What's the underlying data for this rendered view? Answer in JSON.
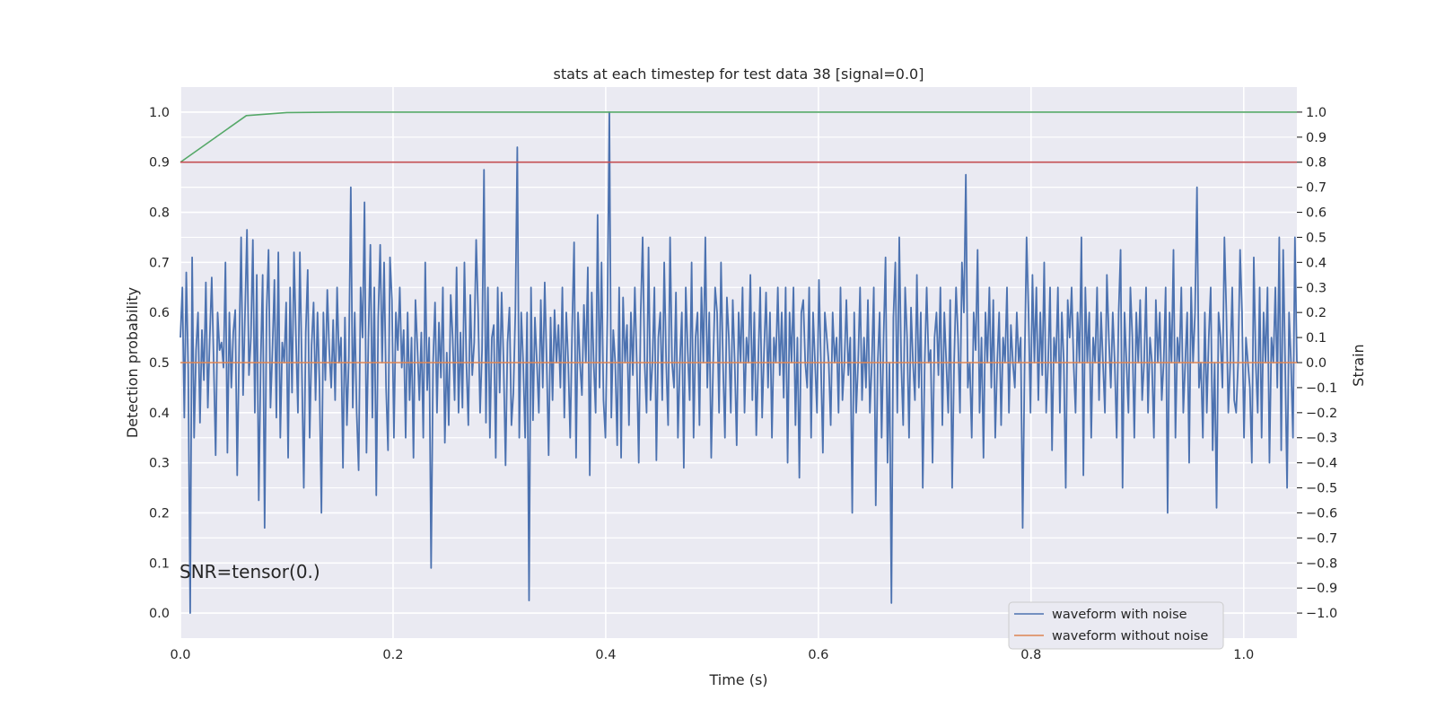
{
  "chart_data": {
    "type": "line",
    "title": "stats at each timestep for test data 38 [signal=0.0]",
    "xlabel": "Time (s)",
    "ylabel": "Detection probability",
    "ylabel_right": "Strain",
    "xlim": [
      0.0,
      1.05
    ],
    "ylim": [
      -0.05,
      1.05
    ],
    "ylim_right": [
      -1.1,
      1.1
    ],
    "x_ticks": [
      0.0,
      0.2,
      0.4,
      0.6,
      0.8,
      1.0
    ],
    "x_tick_labels": [
      "0.0",
      "0.2",
      "0.4",
      "0.6",
      "0.8",
      "1.0"
    ],
    "y_ticks": [
      0.0,
      0.1,
      0.2,
      0.3,
      0.4,
      0.5,
      0.6,
      0.7,
      0.8,
      0.9,
      1.0
    ],
    "y_tick_labels": [
      "0.0",
      "0.1",
      "0.2",
      "0.3",
      "0.4",
      "0.5",
      "0.6",
      "0.7",
      "0.8",
      "0.9",
      "1.0"
    ],
    "y_right_ticks": [
      -1.0,
      -0.9,
      -0.8,
      -0.7,
      -0.6,
      -0.5,
      -0.4,
      -0.3,
      -0.2,
      -0.1,
      0.0,
      0.1,
      0.2,
      0.3,
      0.4,
      0.5,
      0.6,
      0.7,
      0.8,
      0.9,
      1.0
    ],
    "y_right_tick_labels": [
      "−1.0",
      "−0.9",
      "−0.8",
      "−0.7",
      "−0.6",
      "−0.5",
      "−0.4",
      "−0.3",
      "−0.2",
      "−0.1",
      "0.0",
      "0.1",
      "0.2",
      "0.3",
      "0.4",
      "0.5",
      "0.6",
      "0.7",
      "0.8",
      "0.9",
      "1.0"
    ],
    "grid": true,
    "legend_position": "lower-right",
    "annotation": "SNR=tensor(0.)",
    "series": [
      {
        "name": "waveform with noise",
        "axis": "right",
        "color": "#4c72b0",
        "x_start": 0.0,
        "x_end": 1.05,
        "values": [
          0.1,
          0.3,
          -0.22,
          0.36,
          -0.03,
          -1.0,
          0.42,
          -0.3,
          0.05,
          0.2,
          -0.24,
          0.13,
          -0.07,
          0.32,
          -0.18,
          0.1,
          0.34,
          0.0,
          -0.37,
          0.2,
          0.05,
          0.08,
          -0.02,
          0.4,
          -0.36,
          0.2,
          -0.1,
          0.12,
          0.21,
          -0.45,
          0.06,
          0.5,
          -0.13,
          0.2,
          0.53,
          -0.05,
          0.1,
          0.49,
          -0.2,
          0.35,
          -0.55,
          0.0,
          0.35,
          -0.66,
          0.2,
          0.45,
          -0.18,
          0.05,
          0.33,
          -0.22,
          0.44,
          -0.3,
          0.08,
          0.0,
          0.24,
          -0.38,
          0.3,
          -0.12,
          0.44,
          0.1,
          -0.2,
          0.44,
          -0.02,
          -0.5,
          0.12,
          0.37,
          -0.3,
          0.07,
          0.24,
          -0.15,
          0.2,
          -0.08,
          -0.6,
          0.2,
          -0.07,
          0.29,
          0.05,
          -0.1,
          0.17,
          -0.15,
          0.3,
          0.0,
          0.1,
          -0.42,
          0.18,
          -0.25,
          0.02,
          0.7,
          -0.18,
          0.2,
          -0.2,
          -0.43,
          0.3,
          0.1,
          0.64,
          -0.36,
          0.1,
          0.47,
          -0.22,
          0.3,
          -0.53,
          0.18,
          0.47,
          0.0,
          0.4,
          -0.1,
          -0.35,
          0.42,
          0.25,
          -0.3,
          0.2,
          0.05,
          0.3,
          -0.02,
          0.13,
          -0.3,
          0.2,
          -0.15,
          0.1,
          -0.38,
          0.25,
          0.06,
          -0.15,
          0.12,
          -0.3,
          0.4,
          -0.11,
          0.1,
          -0.82,
          0.0,
          0.24,
          -0.2,
          0.16,
          -0.06,
          0.3,
          -0.32,
          0.04,
          -0.25,
          0.27,
          0.1,
          -0.15,
          0.38,
          -0.2,
          0.12,
          -0.18,
          0.4,
          0.0,
          -0.25,
          0.27,
          -0.05,
          0.08,
          0.49,
          0.2,
          -0.2,
          0.05,
          0.77,
          -0.24,
          0.3,
          -0.3,
          0.1,
          0.15,
          -0.38,
          0.3,
          -0.12,
          0.28,
          0.0,
          -0.41,
          0.08,
          0.22,
          -0.25,
          -0.12,
          0.2,
          0.86,
          -0.3,
          0.2,
          0.0,
          -0.3,
          0.2,
          -0.95,
          0.3,
          -0.23,
          0.18,
          0.0,
          -0.2,
          0.25,
          -0.1,
          0.32,
          0.0,
          -0.37,
          0.18,
          -0.15,
          0.21,
          0.0,
          0.15,
          -0.1,
          0.3,
          -0.22,
          0.2,
          0.0,
          -0.3,
          0.14,
          0.48,
          -0.38,
          0.2,
          0.0,
          -0.13,
          0.23,
          0.0,
          0.38,
          -0.45,
          0.28,
          0.0,
          -0.2,
          0.59,
          -0.1,
          0.4,
          -0.15,
          -0.3,
          0.2,
          1.0,
          -0.22,
          0.13,
          0.0,
          -0.33,
          0.3,
          -0.38,
          0.26,
          0.0,
          0.15,
          -0.25,
          0.2,
          -0.05,
          0.3,
          0.0,
          -0.4,
          0.2,
          0.5,
          0.0,
          -0.2,
          0.46,
          -0.15,
          0.0,
          0.3,
          -0.39,
          0.1,
          0.2,
          -0.15,
          0.4,
          0.0,
          -0.25,
          0.5,
          0.0,
          -0.1,
          0.28,
          -0.3,
          0.0,
          0.2,
          -0.42,
          0.3,
          0.05,
          -0.15,
          0.4,
          -0.3,
          0.1,
          0.2,
          -0.25,
          0.3,
          0.0,
          0.5,
          -0.1,
          0.2,
          -0.38,
          0.0,
          0.3,
          0.2,
          -0.2,
          0.4,
          0.0,
          -0.3,
          0.26,
          0.1,
          -0.2,
          0.25,
          0.0,
          -0.33,
          0.2,
          0.0,
          0.3,
          -0.2,
          0.1,
          0.0,
          0.35,
          -0.15,
          0.2,
          -0.29,
          0.0,
          0.3,
          -0.22,
          0.05,
          0.28,
          -0.1,
          0.2,
          -0.3,
          0.1,
          0.0,
          0.3,
          -0.05,
          0.2,
          -0.14,
          0.3,
          -0.4,
          0.2,
          0.0,
          0.3,
          -0.25,
          0.1,
          -0.46,
          0.2,
          0.25,
          0.0,
          -0.1,
          0.3,
          -0.3,
          0.2,
          0.0,
          -0.2,
          0.33,
          0.0,
          -0.36,
          0.2,
          0.1,
          0.0,
          -0.25,
          0.2,
          0.0,
          0.1,
          -0.2,
          0.3,
          -0.15,
          0.0,
          0.25,
          -0.05,
          0.1,
          -0.6,
          0.2,
          -0.2,
          0.0,
          0.3,
          -0.15,
          0.1,
          -0.1,
          0.25,
          -0.2,
          0.0,
          0.3,
          -0.57,
          0.0,
          0.2,
          -0.3,
          0.1,
          0.42,
          -0.4,
          0.0,
          -0.96,
          0.18,
          0.4,
          -0.2,
          0.5,
          0.0,
          -0.25,
          0.3,
          0.1,
          -0.3,
          0.22,
          0.0,
          -0.15,
          0.35,
          -0.1,
          0.2,
          -0.5,
          0.0,
          0.3,
          0.0,
          0.05,
          -0.4,
          0.1,
          0.2,
          -0.05,
          0.3,
          -0.25,
          0.2,
          0.0,
          -0.2,
          0.25,
          -0.5,
          0.0,
          0.3,
          0.1,
          -0.2,
          0.4,
          0.2,
          0.75,
          -0.1,
          0.0,
          -0.3,
          0.2,
          0.05,
          0.45,
          -0.2,
          0.1,
          -0.38,
          0.2,
          0.0,
          0.3,
          -0.1,
          0.25,
          -0.3,
          0.0,
          0.2,
          -0.25,
          0.1,
          0.0,
          0.3,
          -0.2,
          0.15,
          0.0,
          -0.1,
          0.2,
          0.0,
          0.1,
          -0.66,
          0.0,
          0.5,
          0.2,
          -0.2,
          0.35,
          0.0,
          0.3,
          -0.15,
          0.2,
          -0.05,
          0.4,
          -0.2,
          0.0,
          0.3,
          -0.35,
          0.1,
          0.0,
          0.3,
          -0.2,
          0.2,
          0.0,
          -0.5,
          0.25,
          0.1,
          0.3,
          0.0,
          -0.2,
          0.2,
          0.0,
          0.5,
          -0.45,
          0.3,
          0.0,
          0.2,
          -0.3,
          0.1,
          0.0,
          0.3,
          -0.15,
          0.2,
          0.0,
          -0.2,
          0.35,
          0.1,
          -0.1,
          0.2,
          0.0,
          -0.3,
          0.2,
          0.45,
          -0.5,
          0.2,
          0.0,
          -0.2,
          0.3,
          0.1,
          -0.3,
          0.2,
          0.0,
          0.25,
          -0.15,
          0.0,
          0.3,
          -0.2,
          0.1,
          0.0,
          -0.3,
          0.25,
          0.0,
          0.2,
          -0.15,
          0.0,
          0.3,
          -0.6,
          0.2,
          0.0,
          0.45,
          -0.3,
          0.1,
          0.0,
          0.3,
          -0.2,
          0.0,
          0.2,
          -0.4,
          0.3,
          0.0,
          0.2,
          0.7,
          -0.1,
          0.0,
          -0.3,
          0.2,
          -0.2,
          0.1,
          0.3,
          -0.35,
          0.0,
          -0.58,
          0.2,
          0.1,
          -0.1,
          0.5,
          0.2,
          -0.2,
          0.0,
          0.3,
          -0.15,
          -0.2,
          0.0,
          0.45,
          0.2,
          -0.3,
          0.1,
          0.0,
          -0.1,
          -0.4,
          0.42,
          0.0,
          -0.2,
          0.3,
          -0.3,
          0.2,
          0.0,
          0.3,
          -0.4,
          0.1,
          0.0,
          0.3,
          -0.1,
          0.5,
          -0.35,
          0.45,
          0.0,
          -0.5,
          0.2,
          0.0,
          -0.3,
          0.5,
          0.0
        ]
      },
      {
        "name": "waveform without noise",
        "axis": "right",
        "color": "#dd8452",
        "x": [
          0.0,
          1.05
        ],
        "y": [
          0.0,
          0.0
        ]
      },
      {
        "name": "",
        "axis": "left",
        "color": "#55a868",
        "x": [
          0.0,
          0.01,
          0.02,
          0.04,
          0.062,
          0.1,
          0.15,
          1.05
        ],
        "y": [
          0.9,
          0.915,
          0.93,
          0.96,
          0.993,
          0.999,
          1.0,
          1.0
        ]
      },
      {
        "name": "",
        "axis": "left",
        "color": "#c44e52",
        "x": [
          0.0,
          1.05
        ],
        "y": [
          0.9,
          0.9
        ]
      }
    ]
  }
}
